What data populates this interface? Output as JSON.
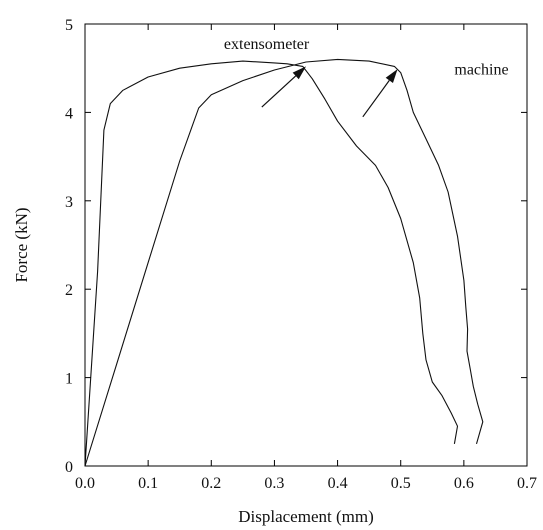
{
  "chart_data": {
    "type": "line",
    "title": "",
    "xlabel": "Displacement (mm)",
    "ylabel": "Force (kN)",
    "xlim": [
      0.0,
      0.7
    ],
    "ylim": [
      0,
      5
    ],
    "x_ticks": [
      "0.0",
      "0.1",
      "0.2",
      "0.3",
      "0.4",
      "0.5",
      "0.6",
      "0.7"
    ],
    "y_ticks": [
      "0",
      "1",
      "2",
      "3",
      "4",
      "5"
    ],
    "grid": false,
    "legend": "none",
    "series": [
      {
        "name": "extensometer",
        "points": [
          [
            0.0,
            0.0
          ],
          [
            0.02,
            2.2
          ],
          [
            0.03,
            3.8
          ],
          [
            0.04,
            4.1
          ],
          [
            0.06,
            4.25
          ],
          [
            0.1,
            4.4
          ],
          [
            0.15,
            4.5
          ],
          [
            0.2,
            4.55
          ],
          [
            0.25,
            4.58
          ],
          [
            0.3,
            4.56
          ],
          [
            0.32,
            4.55
          ],
          [
            0.345,
            4.52
          ],
          [
            0.36,
            4.38
          ],
          [
            0.38,
            4.15
          ],
          [
            0.4,
            3.9
          ],
          [
            0.43,
            3.62
          ],
          [
            0.46,
            3.4
          ],
          [
            0.48,
            3.15
          ],
          [
            0.5,
            2.8
          ],
          [
            0.52,
            2.3
          ],
          [
            0.53,
            1.9
          ],
          [
            0.535,
            1.5
          ],
          [
            0.54,
            1.2
          ],
          [
            0.55,
            0.95
          ],
          [
            0.565,
            0.8
          ],
          [
            0.58,
            0.6
          ],
          [
            0.59,
            0.45
          ],
          [
            0.585,
            0.25
          ]
        ]
      },
      {
        "name": "machine",
        "points": [
          [
            0.0,
            0.0
          ],
          [
            0.05,
            1.15
          ],
          [
            0.1,
            2.3
          ],
          [
            0.15,
            3.45
          ],
          [
            0.18,
            4.05
          ],
          [
            0.2,
            4.2
          ],
          [
            0.25,
            4.36
          ],
          [
            0.3,
            4.48
          ],
          [
            0.35,
            4.57
          ],
          [
            0.4,
            4.6
          ],
          [
            0.45,
            4.58
          ],
          [
            0.49,
            4.52
          ],
          [
            0.5,
            4.45
          ],
          [
            0.51,
            4.25
          ],
          [
            0.52,
            4.0
          ],
          [
            0.54,
            3.7
          ],
          [
            0.56,
            3.4
          ],
          [
            0.575,
            3.1
          ],
          [
            0.59,
            2.6
          ],
          [
            0.6,
            2.1
          ],
          [
            0.603,
            1.8
          ],
          [
            0.606,
            1.55
          ],
          [
            0.605,
            1.3
          ],
          [
            0.61,
            1.1
          ],
          [
            0.615,
            0.9
          ],
          [
            0.622,
            0.7
          ],
          [
            0.63,
            0.5
          ],
          [
            0.62,
            0.25
          ]
        ]
      }
    ],
    "annotations": [
      {
        "text": "extensometer",
        "x": 0.22,
        "y": 4.72
      },
      {
        "text": "machine",
        "x": 0.585,
        "y": 4.43
      }
    ],
    "arrows": [
      {
        "from": [
          0.28,
          4.06
        ],
        "to": [
          0.35,
          4.52
        ]
      },
      {
        "from": [
          0.44,
          3.95
        ],
        "to": [
          0.495,
          4.49
        ]
      }
    ]
  }
}
